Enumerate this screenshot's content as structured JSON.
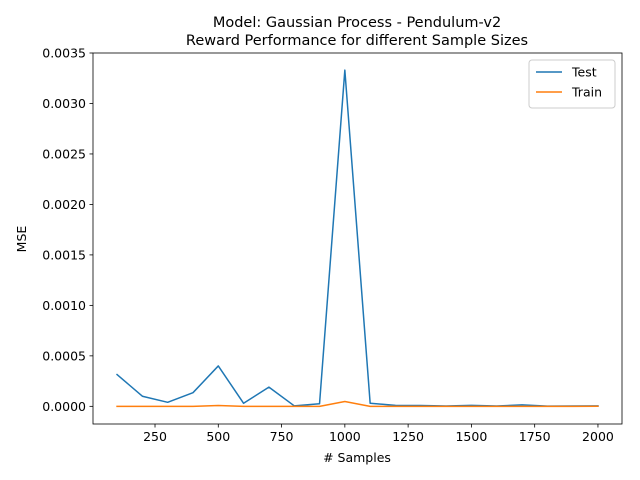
{
  "chart_data": {
    "type": "line",
    "title": "Model: Gaussian Process - Pendulum-v2",
    "subtitle": "Reward Performance for different Sample Sizes",
    "xlabel": "# Samples",
    "ylabel": "MSE",
    "xlim": [
      5,
      2095
    ],
    "ylim": [
      -0.000175,
      0.0035
    ],
    "xticks": [
      250,
      500,
      750,
      1000,
      1250,
      1500,
      1750,
      2000
    ],
    "xtick_labels": [
      "250",
      "500",
      "750",
      "1000",
      "1250",
      "1500",
      "1750",
      "2000"
    ],
    "yticks": [
      0.0,
      0.0005,
      0.001,
      0.0015,
      0.002,
      0.0025,
      0.003,
      0.0035
    ],
    "ytick_labels": [
      "0.0000",
      "0.0005",
      "0.0010",
      "0.0015",
      "0.0020",
      "0.0025",
      "0.0030",
      "0.0035"
    ],
    "grid": false,
    "legend_position": "top-right",
    "x": [
      100,
      200,
      300,
      400,
      500,
      600,
      700,
      800,
      900,
      1000,
      1100,
      1200,
      1300,
      1400,
      1500,
      1600,
      1700,
      1800,
      1900,
      2000
    ],
    "series": [
      {
        "name": "Test",
        "color": "#1f77b4",
        "values": [
          0.000315,
          0.0001,
          4e-05,
          0.000135,
          0.0004,
          3e-05,
          0.00019,
          5e-06,
          2.5e-05,
          0.00333,
          3e-05,
          1e-05,
          8e-06,
          3e-06,
          1e-05,
          3e-06,
          1.5e-05,
          2e-06,
          3e-06,
          5e-06
        ]
      },
      {
        "name": "Train",
        "color": "#ff7f0e",
        "values": [
          0.0,
          0.0,
          0.0,
          0.0,
          8e-06,
          0.0,
          0.0,
          0.0,
          0.0,
          4.8e-05,
          0.0,
          0.0,
          0.0,
          0.0,
          0.0,
          0.0,
          0.0,
          0.0,
          0.0,
          1e-06
        ]
      }
    ]
  }
}
